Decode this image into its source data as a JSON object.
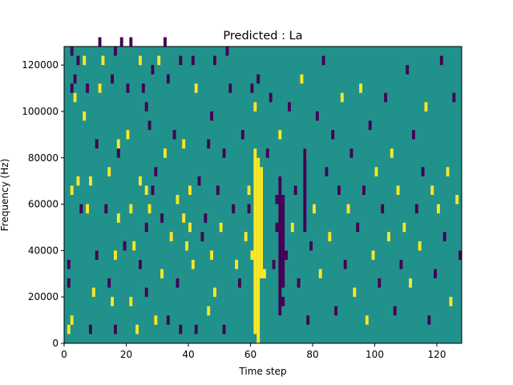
{
  "chart_data": {
    "type": "heatmap",
    "title": "Predicted : La",
    "xlabel": "Time step",
    "ylabel": "Frequency (Hz)",
    "xlim": [
      0,
      128
    ],
    "ylim": [
      0,
      128000
    ],
    "x_ticks": [
      0,
      20,
      40,
      60,
      80,
      100,
      120
    ],
    "y_ticks": [
      0,
      20000,
      40000,
      60000,
      80000,
      100000,
      120000
    ],
    "x_tick_labels": [
      "0",
      "20",
      "40",
      "60",
      "80",
      "100",
      "120"
    ],
    "y_tick_labels": [
      "0",
      "20000",
      "40000",
      "60000",
      "80000",
      "100000",
      "120000"
    ],
    "grid": false,
    "colormap": "viridis",
    "colors": {
      "background": "#21918c",
      "high": "#fde725",
      "low": "#440154"
    },
    "cell_height_hz": 4000,
    "cells": [
      [
        1,
        4000,
        1
      ],
      [
        1,
        24000,
        -1
      ],
      [
        1,
        32000,
        -1
      ],
      [
        2,
        8000,
        1
      ],
      [
        2,
        64000,
        1
      ],
      [
        2,
        108000,
        -1
      ],
      [
        2,
        124000,
        -1
      ],
      [
        3,
        104000,
        1
      ],
      [
        3,
        112000,
        -1
      ],
      [
        4,
        68000,
        1
      ],
      [
        4,
        120000,
        -1
      ],
      [
        5,
        56000,
        -1
      ],
      [
        6,
        120000,
        1
      ],
      [
        6,
        96000,
        1
      ],
      [
        7,
        56000,
        1
      ],
      [
        7,
        108000,
        -1
      ],
      [
        8,
        68000,
        1
      ],
      [
        8,
        4000,
        -1
      ],
      [
        9,
        20000,
        1
      ],
      [
        10,
        84000,
        -1
      ],
      [
        10,
        36000,
        -1
      ],
      [
        11,
        128000,
        -1
      ],
      [
        11,
        108000,
        1
      ],
      [
        12,
        120000,
        1
      ],
      [
        13,
        56000,
        -1
      ],
      [
        14,
        72000,
        1
      ],
      [
        14,
        24000,
        -1
      ],
      [
        15,
        112000,
        -1
      ],
      [
        15,
        16000,
        1
      ],
      [
        16,
        4000,
        -1
      ],
      [
        16,
        36000,
        1
      ],
      [
        16,
        124000,
        -1
      ],
      [
        17,
        80000,
        -1
      ],
      [
        17,
        52000,
        1
      ],
      [
        17,
        84000,
        1
      ],
      [
        18,
        128000,
        -1
      ],
      [
        19,
        40000,
        -1
      ],
      [
        20,
        88000,
        1
      ],
      [
        20,
        108000,
        -1
      ],
      [
        21,
        16000,
        1
      ],
      [
        21,
        56000,
        1
      ],
      [
        21,
        128000,
        -1
      ],
      [
        22,
        40000,
        1
      ],
      [
        23,
        4000,
        1
      ],
      [
        24,
        32000,
        -1
      ],
      [
        24,
        68000,
        1
      ],
      [
        24,
        120000,
        1
      ],
      [
        25,
        108000,
        -1
      ],
      [
        26,
        20000,
        -1
      ],
      [
        26,
        48000,
        -1
      ],
      [
        26,
        64000,
        1
      ],
      [
        26,
        100000,
        -1
      ],
      [
        27,
        56000,
        1
      ],
      [
        27,
        92000,
        -1
      ],
      [
        28,
        64000,
        -1
      ],
      [
        28,
        116000,
        -1
      ],
      [
        29,
        8000,
        1
      ],
      [
        29,
        72000,
        -1
      ],
      [
        30,
        120000,
        1
      ],
      [
        31,
        52000,
        -1
      ],
      [
        31,
        28000,
        1
      ],
      [
        32,
        80000,
        1
      ],
      [
        32,
        128000,
        -1
      ],
      [
        33,
        112000,
        -1
      ],
      [
        33,
        8000,
        -1
      ],
      [
        34,
        44000,
        1
      ],
      [
        35,
        88000,
        -1
      ],
      [
        36,
        60000,
        1
      ],
      [
        36,
        24000,
        -1
      ],
      [
        37,
        4000,
        -1
      ],
      [
        37,
        120000,
        -1
      ],
      [
        38,
        52000,
        1
      ],
      [
        38,
        84000,
        1
      ],
      [
        39,
        40000,
        1
      ],
      [
        40,
        64000,
        1
      ],
      [
        40,
        48000,
        1
      ],
      [
        41,
        32000,
        1
      ],
      [
        41,
        120000,
        -1
      ],
      [
        42,
        4000,
        -1
      ],
      [
        42,
        108000,
        1
      ],
      [
        43,
        68000,
        -1
      ],
      [
        44,
        44000,
        -1
      ],
      [
        45,
        52000,
        -1
      ],
      [
        46,
        84000,
        -1
      ],
      [
        46,
        12000,
        1
      ],
      [
        47,
        36000,
        1
      ],
      [
        47,
        96000,
        -1
      ],
      [
        48,
        20000,
        1
      ],
      [
        48,
        120000,
        -1
      ],
      [
        49,
        64000,
        -1
      ],
      [
        50,
        48000,
        1
      ],
      [
        51,
        4000,
        -1
      ],
      [
        51,
        80000,
        -1
      ],
      [
        52,
        124000,
        -1
      ],
      [
        53,
        108000,
        -1
      ],
      [
        54,
        56000,
        -1
      ],
      [
        55,
        32000,
        1
      ],
      [
        56,
        24000,
        -1
      ],
      [
        57,
        88000,
        -1
      ],
      [
        58,
        44000,
        1
      ],
      [
        59,
        56000,
        -1
      ],
      [
        59,
        64000,
        1
      ],
      [
        60,
        36000,
        1
      ],
      [
        60,
        108000,
        -1
      ],
      [
        61,
        100000,
        1
      ],
      [
        62,
        112000,
        -1
      ],
      [
        63,
        44000,
        -1
      ],
      [
        64,
        28000,
        1
      ],
      [
        65,
        80000,
        -1
      ],
      [
        66,
        104000,
        -1
      ],
      [
        67,
        32000,
        -1
      ],
      [
        68,
        60000,
        -1
      ],
      [
        68,
        48000,
        -1
      ],
      [
        69,
        88000,
        1
      ],
      [
        70,
        16000,
        -1
      ],
      [
        71,
        36000,
        -1
      ],
      [
        72,
        100000,
        -1
      ],
      [
        73,
        48000,
        1
      ],
      [
        74,
        64000,
        -1
      ],
      [
        75,
        24000,
        -1
      ],
      [
        76,
        112000,
        1
      ],
      [
        77,
        80000,
        1
      ],
      [
        78,
        8000,
        -1
      ],
      [
        79,
        40000,
        -1
      ],
      [
        80,
        56000,
        1
      ],
      [
        81,
        96000,
        -1
      ],
      [
        82,
        28000,
        1
      ],
      [
        83,
        120000,
        -1
      ],
      [
        84,
        72000,
        -1
      ],
      [
        85,
        44000,
        1
      ],
      [
        86,
        88000,
        -1
      ],
      [
        87,
        12000,
        -1
      ],
      [
        88,
        64000,
        -1
      ],
      [
        89,
        104000,
        1
      ],
      [
        90,
        32000,
        -1
      ],
      [
        91,
        56000,
        1
      ],
      [
        92,
        80000,
        -1
      ],
      [
        93,
        20000,
        1
      ],
      [
        94,
        48000,
        -1
      ],
      [
        95,
        108000,
        1
      ],
      [
        96,
        64000,
        -1
      ],
      [
        97,
        8000,
        1
      ],
      [
        98,
        92000,
        -1
      ],
      [
        99,
        36000,
        1
      ],
      [
        100,
        72000,
        1
      ],
      [
        101,
        24000,
        -1
      ],
      [
        102,
        56000,
        -1
      ],
      [
        103,
        104000,
        -1
      ],
      [
        104,
        44000,
        1
      ],
      [
        105,
        80000,
        1
      ],
      [
        106,
        12000,
        -1
      ],
      [
        107,
        64000,
        1
      ],
      [
        108,
        32000,
        -1
      ],
      [
        109,
        48000,
        1
      ],
      [
        110,
        116000,
        -1
      ],
      [
        111,
        24000,
        1
      ],
      [
        112,
        88000,
        -1
      ],
      [
        113,
        56000,
        -1
      ],
      [
        114,
        40000,
        1
      ],
      [
        115,
        72000,
        -1
      ],
      [
        116,
        100000,
        1
      ],
      [
        117,
        8000,
        -1
      ],
      [
        118,
        64000,
        1
      ],
      [
        119,
        28000,
        -1
      ],
      [
        120,
        56000,
        1
      ],
      [
        121,
        120000,
        -1
      ],
      [
        122,
        44000,
        -1
      ],
      [
        123,
        72000,
        1
      ],
      [
        124,
        16000,
        1
      ],
      [
        125,
        104000,
        -1
      ],
      [
        126,
        60000,
        1
      ],
      [
        127,
        36000,
        -1
      ]
    ],
    "columns": [
      {
        "x": 61,
        "from": 4000,
        "to": 84000,
        "value": 1
      },
      {
        "x": 62,
        "from": 0,
        "to": 80000,
        "value": 1
      },
      {
        "x": 63,
        "from": 28000,
        "to": 76000,
        "value": 1
      },
      {
        "x": 69,
        "from": 12000,
        "to": 72000,
        "value": -1
      },
      {
        "x": 70,
        "from": 24000,
        "to": 64000,
        "value": -1
      },
      {
        "x": 77,
        "from": 48000,
        "to": 84000,
        "value": -1
      }
    ]
  }
}
